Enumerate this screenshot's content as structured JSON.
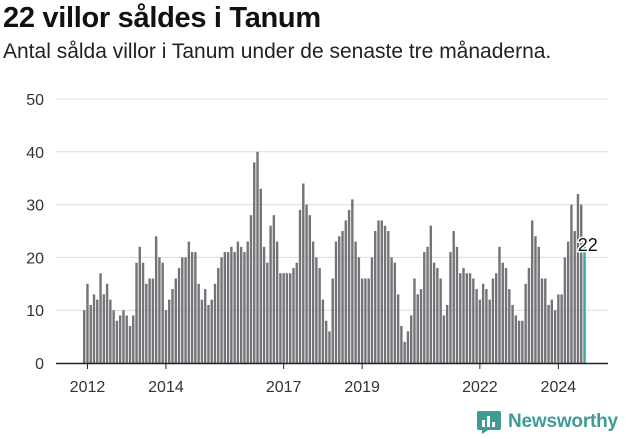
{
  "title": "22 villor såldes i Tanum",
  "subtitle": "Antal sålda villor i Tanum under de senaste tre månaderna.",
  "brand": {
    "name": "Newsworthy",
    "color": "#3f9c94",
    "icon": "newsworthy-chart-icon"
  },
  "chart_data": {
    "type": "bar",
    "x_tick_labels": [
      "2012",
      "2014",
      "2017",
      "2019",
      "2022",
      "2024"
    ],
    "ylim": [
      0,
      50
    ],
    "y_ticks": [
      0,
      10,
      20,
      30,
      40,
      50
    ],
    "grid": true,
    "bar_color": "#737378",
    "highlight_color": "#3aa39a",
    "series": [
      {
        "values": [
          10,
          15,
          11,
          13,
          12,
          17,
          13,
          15,
          12,
          10,
          8,
          9,
          10,
          9,
          7,
          9,
          19,
          22,
          19,
          15,
          16,
          16,
          24,
          20,
          19,
          10,
          12,
          14,
          16,
          18,
          20,
          20,
          23,
          21,
          21,
          15,
          12,
          14,
          11,
          12,
          15,
          18,
          20,
          21,
          21,
          22,
          21,
          23,
          22,
          21,
          23,
          28,
          38,
          40,
          33,
          22,
          19,
          26,
          28,
          23,
          17,
          17,
          17,
          17,
          18,
          19,
          29,
          34,
          30,
          28,
          23,
          20,
          18,
          12,
          8,
          6,
          16,
          23,
          24,
          25,
          27,
          29,
          31,
          23,
          20,
          16,
          16,
          16,
          20,
          25,
          27,
          27,
          26,
          25,
          20,
          19,
          13,
          7,
          4,
          6,
          9,
          16,
          13,
          14,
          21,
          22,
          26,
          19,
          18,
          16,
          9,
          11,
          21,
          25,
          22,
          17,
          18,
          17,
          17,
          16,
          14,
          12,
          15,
          14,
          12,
          16,
          17,
          22,
          19,
          18,
          14,
          11,
          9,
          8,
          8,
          15,
          18,
          27,
          24,
          22,
          16,
          16,
          11,
          12,
          10,
          13,
          13,
          20,
          23,
          30,
          25,
          32,
          30,
          22
        ]
      }
    ],
    "value_label": "22"
  }
}
